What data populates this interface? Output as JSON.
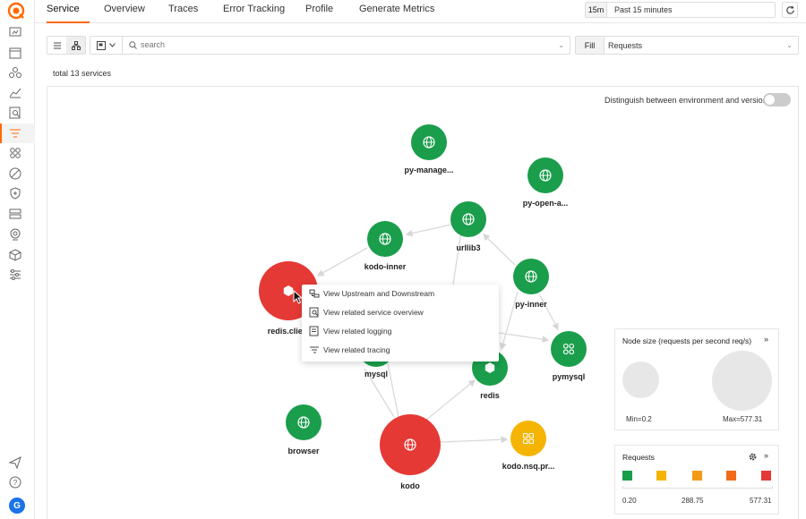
{
  "tabs": [
    {
      "label": "Service",
      "active": true
    },
    {
      "label": "Overview",
      "active": false
    },
    {
      "label": "Traces",
      "active": false
    },
    {
      "label": "Error Tracking",
      "active": false
    },
    {
      "label": "Profile",
      "active": false
    },
    {
      "label": "Generate Metrics",
      "active": false
    }
  ],
  "time_range": {
    "short": "15m",
    "label": "Past 15 minutes"
  },
  "search": {
    "placeholder": "search"
  },
  "fill": {
    "label": "Fill",
    "value": "Requests"
  },
  "total_services": "total 13 services",
  "distinguish_label": "Distinguish between environment and version",
  "distinguish_enabled": false,
  "nodes": [
    {
      "name": "py-manage...",
      "kind": "web",
      "color": "#1a9e4b"
    },
    {
      "name": "py-open-a...",
      "kind": "web",
      "color": "#1a9e4b"
    },
    {
      "name": "urllib3",
      "kind": "web",
      "color": "#1a9e4b"
    },
    {
      "name": "kodo-inner",
      "kind": "web",
      "color": "#1a9e4b"
    },
    {
      "name": "py-inner",
      "kind": "web",
      "color": "#1a9e4b"
    },
    {
      "name": "redis.clie...",
      "kind": "db",
      "color": "#e53935"
    },
    {
      "name": "mysql",
      "kind": "db",
      "color": "#1a9e4b"
    },
    {
      "name": "redis",
      "kind": "db",
      "color": "#1a9e4b"
    },
    {
      "name": "pymysql",
      "kind": "app",
      "color": "#1a9e4b"
    },
    {
      "name": "browser",
      "kind": "web",
      "color": "#1a9e4b"
    },
    {
      "name": "kodo",
      "kind": "web",
      "color": "#e53935"
    },
    {
      "name": "kodo.nsq.pr...",
      "kind": "app",
      "color": "#f5b400"
    }
  ],
  "context_menu": [
    {
      "label": "View Upstream and Downstream",
      "icon": "topology-icon"
    },
    {
      "label": "View related service overview",
      "icon": "overview-icon"
    },
    {
      "label": "View related logging",
      "icon": "logging-icon"
    },
    {
      "label": "View related tracing",
      "icon": "tracing-icon"
    }
  ],
  "node_size_legend": {
    "title": "Node size (requests per second req/s)",
    "min_label": "Min=0.2",
    "max_label": "Max=577.31"
  },
  "requests_legend": {
    "title": "Requests",
    "colors": [
      "#1a9e4b",
      "#f5b400",
      "#f39a1a",
      "#f06a1a",
      "#e53935"
    ],
    "scale": [
      "0.20",
      "288.75",
      "577.31"
    ]
  },
  "user_avatar": "G"
}
